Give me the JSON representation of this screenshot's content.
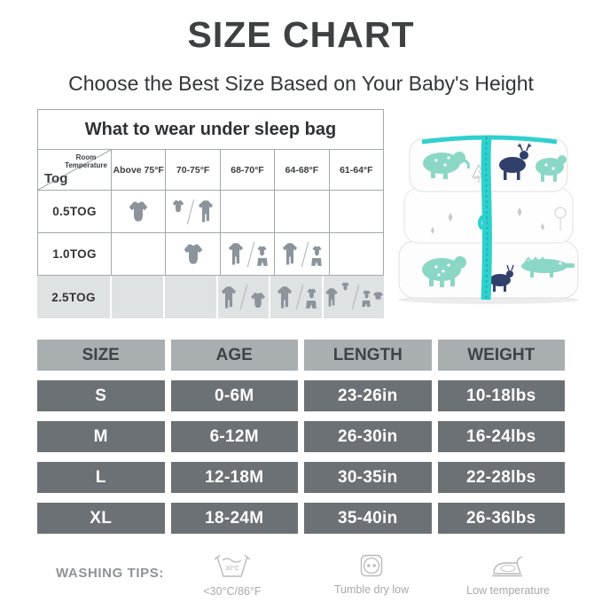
{
  "page": {
    "title": "SIZE CHART",
    "subtitle": "Choose the Best Size Based on Your Baby's Height"
  },
  "wear_table": {
    "title": "What to wear under sleep bag",
    "corner_top": "Room Temperature",
    "corner_bottom": "Tog",
    "columns": [
      "Above 75°F",
      "70-75°F",
      "68-70°F",
      "64-68°F",
      "61-64°F"
    ],
    "rows": [
      {
        "label": "0.5TOG",
        "cells": [
          [
            "bodysuit"
          ],
          [
            "bodysuit-small",
            "slash",
            "sleeper"
          ],
          [],
          [],
          []
        ]
      },
      {
        "label": "1.0TOG",
        "cells": [
          [],
          [
            "bodysuit"
          ],
          [
            "sleeper",
            "slash",
            "outfit"
          ],
          [
            "sleeper",
            "slash",
            "outfit"
          ],
          []
        ]
      },
      {
        "label": "2.5TOG",
        "cells": [
          [],
          [],
          [
            "sleeper",
            "slash",
            "bodysuit-drop"
          ],
          [
            "sleeper",
            "slash",
            "outfit"
          ],
          [
            "sleeper-plus",
            "slash",
            "outfit-plus"
          ]
        ]
      }
    ]
  },
  "product": {
    "description": "Stack of three folded white baby sleep bags with mint and navy animal print and teal zipper"
  },
  "size_table": {
    "headers": [
      "SIZE",
      "AGE",
      "LENGTH",
      "WEIGHT"
    ],
    "rows": [
      [
        "S",
        "0-6M",
        "23-26in",
        "10-18lbs"
      ],
      [
        "M",
        "6-12M",
        "26-30in",
        "16-24lbs"
      ],
      [
        "L",
        "12-18M",
        "30-35in",
        "22-28lbs"
      ],
      [
        "XL",
        "18-24M",
        "35-40in",
        "26-36lbs"
      ]
    ]
  },
  "washing": {
    "label": "WASHING TIPS:",
    "items": [
      {
        "icon": "machine-wash-30-icon",
        "inner": "30°C",
        "caption": "<30°C/86°F"
      },
      {
        "icon": "tumble-dry-icon",
        "caption": "Tumble dry low"
      },
      {
        "icon": "iron-low-icon",
        "caption": "Low temperature"
      }
    ]
  },
  "colors": {
    "accent_teal": "#2ed1ce",
    "animal_mint": "#8bd7c6",
    "animal_navy": "#31406b",
    "glyph_gray": "#8c939b",
    "table_header_bg": "#a9aeb1",
    "table_row_bg": "#6b7175",
    "highlight_row_bg": "#dfe2e3",
    "border_gray": "#a3a8ab"
  }
}
